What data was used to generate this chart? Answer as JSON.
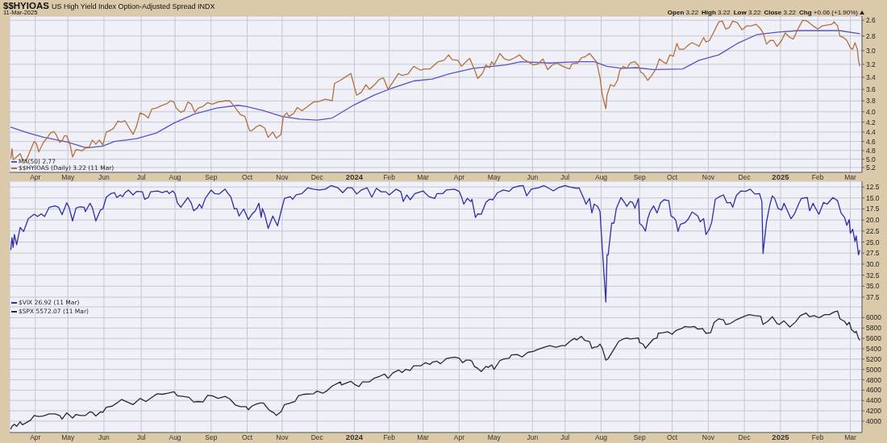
{
  "chart_data": [
    {
      "type": "line",
      "title": "$$HYIOAS",
      "subtitle": "US High Yield Index Option-Adjusted Spread INDX",
      "annotations": [
        "11-Mar-2025",
        "Open 3.22",
        "High 3.22",
        "Low 3.22",
        "Close 3.22",
        "Chg +0.06 (+1.90%)"
      ],
      "series": [
        {
          "name": "MA(50) 2.77",
          "color": "#5555c8",
          "x": [
            "2023-03-13",
            "2023-03-28",
            "2023-04-10",
            "2023-04-30",
            "2023-05-17",
            "2023-05-31",
            "2023-06-10",
            "2023-06-29",
            "2023-07-16",
            "2023-07-31",
            "2023-08-18",
            "2023-09-06",
            "2023-09-24",
            "2023-10-01",
            "2023-10-16",
            "2023-11-01",
            "2023-11-16",
            "2023-12-01",
            "2023-12-14",
            "2024-01-02",
            "2024-01-19",
            "2024-02-02",
            "2024-02-22",
            "2024-03-09",
            "2024-03-23",
            "2024-04-13",
            "2024-05-11",
            "2024-05-24",
            "2024-06-18",
            "2024-07-12",
            "2024-07-26",
            "2024-08-06",
            "2024-08-19",
            "2024-08-31",
            "2024-09-15",
            "2024-10-10",
            "2024-10-24",
            "2024-11-10",
            "2024-11-26",
            "2024-12-13",
            "2024-12-31",
            "2025-01-17",
            "2025-02-03",
            "2025-02-22",
            "2025-03-11"
          ],
          "values": [
            4.3,
            4.42,
            4.51,
            4.61,
            4.74,
            4.7,
            4.6,
            4.54,
            4.42,
            4.22,
            4.04,
            3.93,
            3.88,
            3.9,
            3.98,
            4.09,
            4.14,
            4.16,
            4.12,
            3.87,
            3.7,
            3.59,
            3.46,
            3.43,
            3.35,
            3.26,
            3.21,
            3.16,
            3.18,
            3.16,
            3.16,
            3.23,
            3.26,
            3.25,
            3.28,
            3.27,
            3.14,
            3.06,
            2.9,
            2.78,
            2.75,
            2.73,
            2.73,
            2.73,
            2.77
          ]
        },
        {
          "name": "$$HYIOAS (Daily) 3.22 (11 Mar)",
          "color": "#b4703a",
          "x": [
            "2023-03-13",
            "2023-03-14",
            "2023-03-15",
            "2023-03-17",
            "2023-03-21",
            "2023-03-23",
            "2023-03-26",
            "2023-03-28",
            "2023-04-02",
            "2023-04-04",
            "2023-04-06",
            "2023-04-10",
            "2023-04-13",
            "2023-04-16",
            "2023-04-19",
            "2023-04-21",
            "2023-04-24",
            "2023-04-26",
            "2023-04-28",
            "2023-04-30",
            "2023-05-03",
            "2023-05-05",
            "2023-05-08",
            "2023-05-11",
            "2023-05-13",
            "2023-05-17",
            "2023-05-19",
            "2023-05-22",
            "2023-05-25",
            "2023-05-28",
            "2023-05-31",
            "2023-06-03",
            "2023-06-06",
            "2023-06-09",
            "2023-06-13",
            "2023-06-16",
            "2023-06-19",
            "2023-06-22",
            "2023-06-26",
            "2023-06-29",
            "2023-07-02",
            "2023-07-06",
            "2023-07-09",
            "2023-07-12",
            "2023-07-16",
            "2023-07-20",
            "2023-07-25",
            "2023-07-28",
            "2023-07-31",
            "2023-08-02",
            "2023-08-06",
            "2023-08-09",
            "2023-08-12",
            "2023-08-15",
            "2023-08-18",
            "2023-08-21",
            "2023-08-25",
            "2023-08-29",
            "2023-09-02",
            "2023-09-07",
            "2023-09-13",
            "2023-09-17",
            "2023-09-19",
            "2023-09-22",
            "2023-09-26",
            "2023-09-30",
            "2023-10-04",
            "2023-10-06",
            "2023-10-10",
            "2023-10-13",
            "2023-10-17",
            "2023-10-20",
            "2023-10-24",
            "2023-10-27",
            "2023-10-31",
            "2023-11-02",
            "2023-11-05",
            "2023-11-07",
            "2023-11-11",
            "2023-11-14",
            "2023-11-18",
            "2023-11-23",
            "2023-11-28",
            "2023-12-03",
            "2023-12-08",
            "2023-12-14",
            "2023-12-16",
            "2023-12-21",
            "2023-12-25",
            "2023-12-30",
            "2024-01-04",
            "2024-01-08",
            "2024-01-12",
            "2024-01-15",
            "2024-01-20",
            "2024-01-23",
            "2024-01-27",
            "2024-01-31",
            "2024-02-04",
            "2024-02-09",
            "2024-02-12",
            "2024-02-17",
            "2024-02-22",
            "2024-02-28",
            "2024-03-02",
            "2024-03-07",
            "2024-03-14",
            "2024-03-19",
            "2024-03-23",
            "2024-03-26",
            "2024-03-31",
            "2024-04-03",
            "2024-04-07",
            "2024-04-10",
            "2024-04-14",
            "2024-04-17",
            "2024-04-21",
            "2024-04-24",
            "2024-04-27",
            "2024-04-29",
            "2024-05-01",
            "2024-05-06",
            "2024-05-10",
            "2024-05-14",
            "2024-05-19",
            "2024-05-23",
            "2024-05-26",
            "2024-05-30",
            "2024-06-04",
            "2024-06-08",
            "2024-06-12",
            "2024-06-16",
            "2024-06-20",
            "2024-06-24",
            "2024-06-29",
            "2024-07-05",
            "2024-07-07",
            "2024-07-12",
            "2024-07-15",
            "2024-07-18",
            "2024-07-22",
            "2024-07-25",
            "2024-07-28",
            "2024-07-31",
            "2024-08-02",
            "2024-08-05",
            "2024-08-06",
            "2024-08-09",
            "2024-08-12",
            "2024-08-15",
            "2024-08-17",
            "2024-08-20",
            "2024-08-23",
            "2024-08-26",
            "2024-08-30",
            "2024-09-02",
            "2024-09-04",
            "2024-09-06",
            "2024-09-10",
            "2024-09-13",
            "2024-09-17",
            "2024-09-20",
            "2024-09-23",
            "2024-09-26",
            "2024-09-29",
            "2024-10-02",
            "2024-10-05",
            "2024-10-07",
            "2024-10-11",
            "2024-10-15",
            "2024-10-18",
            "2024-10-22",
            "2024-10-24",
            "2024-10-28",
            "2024-10-30",
            "2024-11-02",
            "2024-11-06",
            "2024-11-10",
            "2024-11-13",
            "2024-11-16",
            "2024-11-19",
            "2024-11-22",
            "2024-11-26",
            "2024-11-30",
            "2024-12-04",
            "2024-12-08",
            "2024-12-12",
            "2024-12-16",
            "2024-12-18",
            "2024-12-21",
            "2024-12-24",
            "2024-12-27",
            "2024-12-30",
            "2025-01-03",
            "2025-01-06",
            "2025-01-10",
            "2025-01-13",
            "2025-01-17",
            "2025-01-21",
            "2025-01-25",
            "2025-01-30",
            "2025-02-03",
            "2025-02-07",
            "2025-02-11",
            "2025-02-15",
            "2025-02-17",
            "2025-02-20",
            "2025-02-22",
            "2025-02-25",
            "2025-02-28",
            "2025-03-03",
            "2025-03-05",
            "2025-03-07",
            "2025-03-09",
            "2025-03-10",
            "2025-03-11"
          ],
          "values": [
            4.97,
            4.76,
            5.01,
            4.97,
            4.87,
            5.01,
            5.04,
            4.91,
            4.6,
            4.65,
            4.83,
            4.62,
            4.53,
            4.42,
            4.39,
            4.46,
            4.62,
            4.59,
            4.48,
            4.48,
            4.68,
            4.95,
            4.78,
            4.79,
            4.81,
            4.72,
            4.74,
            4.57,
            4.66,
            4.57,
            4.68,
            4.4,
            4.37,
            4.33,
            4.18,
            4.2,
            4.17,
            4.29,
            4.45,
            4.28,
            4.02,
            4.06,
            4.12,
            3.95,
            3.93,
            3.89,
            3.85,
            3.8,
            3.82,
            3.93,
            4.01,
            3.98,
            3.82,
            3.86,
            4.01,
            3.93,
            3.9,
            3.83,
            3.86,
            3.82,
            3.8,
            3.8,
            3.85,
            3.93,
            4.05,
            4.09,
            4.37,
            4.37,
            4.29,
            4.26,
            4.32,
            4.51,
            4.4,
            4.53,
            4.45,
            4.09,
            4.02,
            4.09,
            4.03,
            3.92,
            3.98,
            3.9,
            3.82,
            3.81,
            3.77,
            3.8,
            3.5,
            3.45,
            3.4,
            3.34,
            3.7,
            3.65,
            3.52,
            3.6,
            3.51,
            3.44,
            3.41,
            3.6,
            3.48,
            3.34,
            3.37,
            3.35,
            3.23,
            3.29,
            3.27,
            3.27,
            3.16,
            3.14,
            3.06,
            3.13,
            3.14,
            3.23,
            3.16,
            3.11,
            3.27,
            3.42,
            3.34,
            3.21,
            3.25,
            3.16,
            3.21,
            3.04,
            3.12,
            3.14,
            3.1,
            3.06,
            3.12,
            3.16,
            3.21,
            3.19,
            3.12,
            3.28,
            3.21,
            3.18,
            3.23,
            3.27,
            3.19,
            3.18,
            3.1,
            3.09,
            3.04,
            3.1,
            3.16,
            3.41,
            3.7,
            3.94,
            3.7,
            3.52,
            3.55,
            3.45,
            3.29,
            3.23,
            3.26,
            3.18,
            3.16,
            3.22,
            3.32,
            3.34,
            3.45,
            3.38,
            3.27,
            3.12,
            3.16,
            3.19,
            3.06,
            3.08,
            2.9,
            2.98,
            2.98,
            2.92,
            2.89,
            2.92,
            2.94,
            2.82,
            2.88,
            2.86,
            2.74,
            2.62,
            2.61,
            2.71,
            2.69,
            2.61,
            2.63,
            2.72,
            2.67,
            2.67,
            2.65,
            2.71,
            2.76,
            2.91,
            2.86,
            2.86,
            2.94,
            2.86,
            2.76,
            2.82,
            2.84,
            2.71,
            2.6,
            2.61,
            2.67,
            2.71,
            2.67,
            2.66,
            2.65,
            2.62,
            2.67,
            2.8,
            2.82,
            2.86,
            2.96,
            2.98,
            2.89,
            2.98,
            3.14,
            3.22
          ]
        }
      ],
      "xlim": [
        "2023-03-12",
        "2025-03-13"
      ],
      "xticks": [
        {
          "value": "2023-04-03",
          "label": "Apr"
        },
        {
          "value": "2023-05-01",
          "label": "May"
        },
        {
          "value": "2023-06-01",
          "label": "Jun"
        },
        {
          "value": "2023-07-03",
          "label": "Jul"
        },
        {
          "value": "2023-08-01",
          "label": "Aug"
        },
        {
          "value": "2023-09-01",
          "label": "Sep"
        },
        {
          "value": "2023-10-02",
          "label": "Oct"
        },
        {
          "value": "2023-11-01",
          "label": "Nov"
        },
        {
          "value": "2023-12-01",
          "label": "Dec"
        },
        {
          "value": "2024-01-02",
          "label": "2024"
        },
        {
          "value": "2024-02-01",
          "label": "Feb"
        },
        {
          "value": "2024-03-01",
          "label": "Mar"
        },
        {
          "value": "2024-04-01",
          "label": "Apr"
        },
        {
          "value": "2024-05-01",
          "label": "May"
        },
        {
          "value": "2024-06-03",
          "label": "Jun"
        },
        {
          "value": "2024-07-01",
          "label": "Jul"
        },
        {
          "value": "2024-08-01",
          "label": "Aug"
        },
        {
          "value": "2024-09-03",
          "label": "Sep"
        },
        {
          "value": "2024-10-01",
          "label": "Oct"
        },
        {
          "value": "2024-11-01",
          "label": "Nov"
        },
        {
          "value": "2024-12-02",
          "label": "Dec"
        },
        {
          "value": "2025-01-02",
          "label": "2025"
        },
        {
          "value": "2025-02-03",
          "label": "Feb"
        },
        {
          "value": "2025-03-03",
          "label": "Mar"
        }
      ],
      "ylim": [
        5.32,
        2.55
      ],
      "yticks": [
        2.6,
        2.8,
        {
          "value": 3,
          "label": "3.0"
        },
        3.2,
        3.4,
        3.6,
        3.8,
        {
          "value": 4,
          "label": "4.0"
        },
        4.2,
        4.4,
        4.6,
        4.8,
        {
          "value": 5,
          "label": "5.0"
        },
        5.2
      ],
      "log": true,
      "grid": true,
      "legend": "bottom left"
    },
    {
      "type": "line",
      "series": [
        {
          "name": "$VIX 26.92 (11 Mar)",
          "color": "#2e2eaa",
          "x": [
            "2023-03-13",
            "2023-03-14",
            "2023-03-15",
            "2023-03-16",
            "2023-03-18",
            "2023-03-21",
            "2023-03-24",
            "2023-03-28",
            "2023-04-02",
            "2023-04-05",
            "2023-04-08",
            "2023-04-11",
            "2023-04-15",
            "2023-04-20",
            "2023-04-23",
            "2023-04-26",
            "2023-04-30",
            "2023-05-02",
            "2023-05-05",
            "2023-05-08",
            "2023-05-11",
            "2023-05-15",
            "2023-05-16",
            "2023-05-20",
            "2023-05-22",
            "2023-05-25",
            "2023-05-29",
            "2023-05-31",
            "2023-06-03",
            "2023-06-07",
            "2023-06-10",
            "2023-06-12",
            "2023-06-15",
            "2023-06-17",
            "2023-06-19",
            "2023-06-22",
            "2023-06-26",
            "2023-06-29",
            "2023-07-04",
            "2023-07-06",
            "2023-07-09",
            "2023-07-11",
            "2023-07-17",
            "2023-07-21",
            "2023-07-25",
            "2023-07-27",
            "2023-07-30",
            "2023-08-01",
            "2023-08-03",
            "2023-08-06",
            "2023-08-09",
            "2023-08-12",
            "2023-08-15",
            "2023-08-17",
            "2023-08-20",
            "2023-08-22",
            "2023-08-24",
            "2023-08-27",
            "2023-09-01",
            "2023-09-04",
            "2023-09-08",
            "2023-09-13",
            "2023-09-15",
            "2023-09-18",
            "2023-09-21",
            "2023-09-23",
            "2023-09-25",
            "2023-09-29",
            "2023-10-03",
            "2023-10-06",
            "2023-10-09",
            "2023-10-12",
            "2023-10-14",
            "2023-10-15",
            "2023-10-17",
            "2023-10-20",
            "2023-10-24",
            "2023-10-28",
            "2023-10-31",
            "2023-11-03",
            "2023-11-08",
            "2023-11-10",
            "2023-11-13",
            "2023-11-18",
            "2023-11-23",
            "2023-11-28",
            "2023-12-03",
            "2023-12-08",
            "2023-12-13",
            "2023-12-19",
            "2023-12-23",
            "2023-12-27",
            "2023-12-31",
            "2024-01-04",
            "2024-01-08",
            "2024-01-13",
            "2024-01-17",
            "2024-01-21",
            "2024-01-25",
            "2024-01-29",
            "2024-02-01",
            "2024-02-07",
            "2024-02-11",
            "2024-02-13",
            "2024-02-16",
            "2024-02-19",
            "2024-02-23",
            "2024-03-01",
            "2024-03-06",
            "2024-03-11",
            "2024-03-13",
            "2024-03-18",
            "2024-03-21",
            "2024-03-28",
            "2024-04-01",
            "2024-04-03",
            "2024-04-05",
            "2024-04-08",
            "2024-04-11",
            "2024-04-12",
            "2024-04-15",
            "2024-04-17",
            "2024-04-20",
            "2024-04-24",
            "2024-04-27",
            "2024-04-30",
            "2024-05-04",
            "2024-05-09",
            "2024-05-14",
            "2024-05-17",
            "2024-05-22",
            "2024-05-26",
            "2024-05-29",
            "2024-06-02",
            "2024-06-08",
            "2024-06-13",
            "2024-06-17",
            "2024-06-21",
            "2024-06-25",
            "2024-07-01",
            "2024-07-05",
            "2024-07-11",
            "2024-07-13",
            "2024-07-17",
            "2024-07-19",
            "2024-07-22",
            "2024-07-24",
            "2024-07-26",
            "2024-07-29",
            "2024-07-31",
            "2024-08-02",
            "2024-08-05",
            "2024-08-06",
            "2024-08-07",
            "2024-08-10",
            "2024-08-12",
            "2024-08-14",
            "2024-08-18",
            "2024-08-21",
            "2024-08-23",
            "2024-08-26",
            "2024-08-28",
            "2024-08-30",
            "2024-09-02",
            "2024-09-03",
            "2024-09-05",
            "2024-09-08",
            "2024-09-10",
            "2024-09-12",
            "2024-09-15",
            "2024-09-18",
            "2024-09-21",
            "2024-09-24",
            "2024-09-28",
            "2024-09-30",
            "2024-10-02",
            "2024-10-04",
            "2024-10-06",
            "2024-10-08",
            "2024-10-12",
            "2024-10-15",
            "2024-10-18",
            "2024-10-21",
            "2024-10-23",
            "2024-10-25",
            "2024-10-28",
            "2024-10-30",
            "2024-11-02",
            "2024-11-04",
            "2024-11-07",
            "2024-11-10",
            "2024-11-14",
            "2024-11-17",
            "2024-11-20",
            "2024-11-22",
            "2024-11-25",
            "2024-11-29",
            "2024-12-03",
            "2024-12-07",
            "2024-12-11",
            "2024-12-15",
            "2024-12-17",
            "2024-12-18",
            "2024-12-21",
            "2024-12-24",
            "2024-12-26",
            "2024-12-28",
            "2024-12-31",
            "2025-01-03",
            "2025-01-05",
            "2025-01-08",
            "2025-01-11",
            "2025-01-14",
            "2025-01-18",
            "2025-01-20",
            "2025-01-25",
            "2025-01-27",
            "2025-01-30",
            "2025-01-31",
            "2025-02-04",
            "2025-02-08",
            "2025-02-11",
            "2025-02-16",
            "2025-02-20",
            "2025-02-23",
            "2025-02-26",
            "2025-02-28",
            "2025-03-02",
            "2025-03-03",
            "2025-03-05",
            "2025-03-07",
            "2025-03-08",
            "2025-03-10",
            "2025-03-11"
          ],
          "values": [
            26.7,
            24.0,
            26.2,
            23.3,
            25.6,
            21.7,
            22.6,
            19.7,
            18.7,
            19.2,
            18.6,
            19.2,
            17.1,
            16.8,
            17.1,
            18.8,
            16.1,
            17.1,
            20.2,
            17.3,
            17.0,
            17.1,
            18.1,
            16.2,
            17.2,
            20.2,
            17.7,
            17.5,
            14.8,
            14.0,
            13.8,
            14.9,
            14.3,
            14.7,
            13.8,
            13.2,
            14.3,
            13.5,
            13.6,
            15.3,
            14.9,
            13.6,
            13.4,
            13.8,
            13.4,
            14.0,
            13.4,
            14.0,
            16.1,
            17.1,
            16.0,
            14.9,
            16.2,
            17.9,
            17.3,
            16.4,
            17.3,
            15.1,
            13.2,
            14.0,
            14.1,
            13.0,
            13.8,
            14.8,
            17.5,
            17.4,
            19.1,
            17.5,
            19.9,
            18.7,
            17.9,
            16.2,
            19.4,
            17.4,
            18.7,
            21.9,
            19.1,
            21.3,
            18.1,
            15.1,
            14.7,
            15.3,
            14.3,
            14.0,
            12.7,
            13.0,
            13.2,
            13.0,
            12.2,
            12.7,
            13.8,
            12.7,
            12.7,
            14.1,
            13.2,
            12.7,
            14.8,
            12.8,
            13.6,
            13.6,
            14.3,
            13.0,
            13.6,
            15.8,
            14.3,
            15.4,
            14.0,
            13.4,
            14.7,
            15.1,
            14.0,
            14.0,
            13.2,
            13.0,
            13.5,
            14.7,
            16.4,
            15.1,
            15.8,
            15.3,
            19.4,
            18.6,
            18.7,
            16.0,
            15.3,
            15.4,
            13.8,
            13.2,
            13.5,
            12.7,
            12.3,
            12.2,
            14.5,
            13.0,
            12.7,
            12.2,
            12.8,
            13.4,
            12.7,
            12.2,
            12.5,
            12.8,
            12.7,
            15.1,
            16.4,
            15.1,
            18.4,
            16.4,
            16.9,
            18.1,
            26.6,
            38.6,
            27.9,
            27.9,
            20.7,
            20.7,
            17.4,
            14.9,
            16.0,
            16.9,
            15.8,
            16.0,
            17.3,
            15.1,
            20.8,
            21.2,
            22.5,
            19.7,
            18.1,
            16.8,
            18.4,
            16.1,
            15.4,
            15.6,
            19.1,
            19.4,
            20.0,
            22.6,
            21.0,
            20.6,
            19.7,
            18.2,
            18.7,
            19.1,
            20.4,
            19.7,
            23.3,
            22.0,
            20.4,
            15.3,
            14.8,
            14.3,
            16.1,
            16.0,
            17.1,
            14.5,
            13.4,
            13.5,
            13.0,
            14.1,
            14.0,
            15.8,
            27.6,
            20.4,
            16.4,
            14.5,
            15.1,
            17.4,
            17.7,
            16.2,
            17.9,
            19.7,
            18.6,
            16.1,
            15.1,
            14.9,
            17.9,
            16.2,
            16.8,
            18.7,
            16.0,
            16.4,
            14.9,
            15.6,
            18.4,
            19.4,
            21.2,
            19.9,
            23.0,
            22.1,
            24.9,
            23.6,
            27.9,
            26.9
          ]
        }
      ],
      "xlim": [
        "2023-03-12",
        "2025-03-13"
      ],
      "xticks": [
        {
          "value": "2023-04-03",
          "label": null
        },
        {
          "value": "2023-05-01",
          "label": null
        },
        {
          "value": "2023-06-01",
          "label": null
        },
        {
          "value": "2023-07-03",
          "label": null
        },
        {
          "value": "2023-08-01",
          "label": null
        },
        {
          "value": "2023-09-01",
          "label": null
        },
        {
          "value": "2023-10-02",
          "label": null
        },
        {
          "value": "2023-11-01",
          "label": null
        },
        {
          "value": "2023-12-01",
          "label": null
        },
        {
          "value": "2024-01-02",
          "label": null
        },
        {
          "value": "2024-02-01",
          "label": null
        },
        {
          "value": "2024-03-01",
          "label": null
        },
        {
          "value": "2024-04-01",
          "label": null
        },
        {
          "value": "2024-05-01",
          "label": null
        },
        {
          "value": "2024-06-03",
          "label": null
        },
        {
          "value": "2024-07-01",
          "label": null
        },
        {
          "value": "2024-08-01",
          "label": null
        },
        {
          "value": "2024-09-03",
          "label": null
        },
        {
          "value": "2024-10-01",
          "label": null
        },
        {
          "value": "2024-11-01",
          "label": null
        },
        {
          "value": "2024-12-02",
          "label": null
        },
        {
          "value": "2025-01-02",
          "label": null
        },
        {
          "value": "2025-02-03",
          "label": null
        },
        {
          "value": "2025-03-03",
          "label": null
        }
      ],
      "ylim": [
        39.7,
        11.2
      ],
      "yticks": [
        12.5,
        {
          "value": 15,
          "label": "15.0"
        },
        17.5,
        {
          "value": 20,
          "label": "20.0"
        },
        22.5,
        {
          "value": 25,
          "label": "25.0"
        },
        27.5,
        {
          "value": 30,
          "label": "30.0"
        },
        32.5,
        {
          "value": 35,
          "label": "35.0"
        },
        37.5
      ],
      "grid": true,
      "legend": "bottom left",
      "tick_labels": "y"
    },
    {
      "type": "line",
      "series": [
        {
          "name": "$SPX 5572.07 (11 Mar)",
          "color": "#2b2b2b",
          "x": [
            "2023-03-13",
            "2023-03-14",
            "2023-03-16",
            "2023-03-18",
            "2023-03-21",
            "2023-03-23",
            "2023-03-27",
            "2023-03-30",
            "2023-04-02",
            "2023-04-06",
            "2023-04-10",
            "2023-04-15",
            "2023-04-20",
            "2023-04-24",
            "2023-04-26",
            "2023-04-30",
            "2023-05-05",
            "2023-05-08",
            "2023-05-12",
            "2023-05-16",
            "2023-05-20",
            "2023-05-22",
            "2023-05-25",
            "2023-05-29",
            "2023-05-31",
            "2023-06-03",
            "2023-06-08",
            "2023-06-12",
            "2023-06-16",
            "2023-06-21",
            "2023-06-26",
            "2023-06-29",
            "2023-07-02",
            "2023-07-07",
            "2023-07-14",
            "2023-07-17",
            "2023-07-21",
            "2023-07-26",
            "2023-07-31",
            "2023-08-03",
            "2023-08-08",
            "2023-08-13",
            "2023-08-17",
            "2023-08-21",
            "2023-08-25",
            "2023-08-29",
            "2023-09-02",
            "2023-09-07",
            "2023-09-13",
            "2023-09-17",
            "2023-09-22",
            "2023-09-26",
            "2023-10-01",
            "2023-10-03",
            "2023-10-06",
            "2023-10-10",
            "2023-10-13",
            "2023-10-16",
            "2023-10-18",
            "2023-10-21",
            "2023-10-25",
            "2023-10-27",
            "2023-10-31",
            "2023-11-03",
            "2023-11-08",
            "2023-11-12",
            "2023-11-15",
            "2023-11-20",
            "2023-11-28",
            "2023-12-01",
            "2023-12-06",
            "2023-12-09",
            "2023-12-14",
            "2023-12-21",
            "2023-12-22",
            "2023-12-30",
            "2024-01-03",
            "2024-01-06",
            "2024-01-09",
            "2024-01-15",
            "2024-01-19",
            "2024-01-24",
            "2024-01-28",
            "2024-01-31",
            "2024-02-04",
            "2024-02-09",
            "2024-02-12",
            "2024-02-15",
            "2024-02-19",
            "2024-02-22",
            "2024-02-28",
            "2024-03-03",
            "2024-03-07",
            "2024-03-09",
            "2024-03-13",
            "2024-03-16",
            "2024-03-21",
            "2024-03-28",
            "2024-04-01",
            "2024-04-04",
            "2024-04-07",
            "2024-04-10",
            "2024-04-12",
            "2024-04-14",
            "2024-04-17",
            "2024-04-20",
            "2024-04-24",
            "2024-04-26",
            "2024-04-29",
            "2024-05-01",
            "2024-05-06",
            "2024-05-09",
            "2024-05-14",
            "2024-05-16",
            "2024-05-21",
            "2024-05-25",
            "2024-05-30",
            "2024-06-04",
            "2024-06-08",
            "2024-06-13",
            "2024-06-18",
            "2024-06-23",
            "2024-06-28",
            "2024-07-01",
            "2024-07-05",
            "2024-07-09",
            "2024-07-11",
            "2024-07-15",
            "2024-07-18",
            "2024-07-22",
            "2024-07-24",
            "2024-07-26",
            "2024-07-29",
            "2024-07-31",
            "2024-08-02",
            "2024-08-05",
            "2024-08-07",
            "2024-08-10",
            "2024-08-13",
            "2024-08-16",
            "2024-08-20",
            "2024-08-23",
            "2024-08-26",
            "2024-08-30",
            "2024-09-02",
            "2024-09-03",
            "2024-09-06",
            "2024-09-08",
            "2024-09-11",
            "2024-09-15",
            "2024-09-18",
            "2024-09-19",
            "2024-09-23",
            "2024-09-27",
            "2024-10-01",
            "2024-10-03",
            "2024-10-05",
            "2024-10-09",
            "2024-10-12",
            "2024-10-16",
            "2024-10-20",
            "2024-10-23",
            "2024-10-27",
            "2024-10-30",
            "2024-11-03",
            "2024-11-06",
            "2024-11-10",
            "2024-11-14",
            "2024-11-16",
            "2024-11-20",
            "2024-11-25",
            "2024-12-02",
            "2024-12-06",
            "2024-12-11",
            "2024-12-16",
            "2024-12-18",
            "2024-12-22",
            "2024-12-26",
            "2024-12-30",
            "2025-01-01",
            "2025-01-05",
            "2025-01-10",
            "2025-01-15",
            "2025-01-19",
            "2025-01-24",
            "2025-01-27",
            "2025-01-31",
            "2025-02-04",
            "2025-02-09",
            "2025-02-13",
            "2025-02-17",
            "2025-02-20",
            "2025-02-22",
            "2025-02-26",
            "2025-02-28",
            "2025-03-02",
            "2025-03-04",
            "2025-03-07",
            "2025-03-08",
            "2025-03-10",
            "2025-03-11"
          ],
          "values": [
            3850,
            3900,
            3940,
            3900,
            3990,
            3930,
            3980,
            4020,
            4110,
            4090,
            4100,
            4140,
            4140,
            4110,
            4040,
            4160,
            4060,
            4130,
            4110,
            4110,
            4180,
            4170,
            4100,
            4180,
            4170,
            4270,
            4290,
            4350,
            4420,
            4370,
            4320,
            4380,
            4440,
            4380,
            4490,
            4530,
            4520,
            4540,
            4570,
            4490,
            4480,
            4460,
            4370,
            4380,
            4370,
            4500,
            4490,
            4440,
            4480,
            4430,
            4310,
            4280,
            4280,
            4220,
            4290,
            4330,
            4350,
            4350,
            4290,
            4210,
            4160,
            4110,
            4180,
            4320,
            4350,
            4380,
            4490,
            4520,
            4530,
            4580,
            4540,
            4580,
            4680,
            4760,
            4700,
            4770,
            4700,
            4670,
            4760,
            4760,
            4830,
            4870,
            4910,
            4830,
            4930,
            4990,
            4940,
            5000,
            4980,
            5070,
            5070,
            5130,
            5100,
            5140,
            5160,
            5110,
            5210,
            5240,
            5220,
            5130,
            5180,
            5180,
            5160,
            5060,
            5020,
            4960,
            5060,
            5040,
            5090,
            5000,
            5170,
            5200,
            5220,
            5280,
            5290,
            5240,
            5330,
            5350,
            5390,
            5430,
            5460,
            5430,
            5460,
            5460,
            5540,
            5600,
            5570,
            5640,
            5560,
            5540,
            5410,
            5430,
            5440,
            5490,
            5410,
            5180,
            5210,
            5320,
            5430,
            5540,
            5590,
            5610,
            5590,
            5600,
            5610,
            5520,
            5490,
            5410,
            5490,
            5590,
            5610,
            5700,
            5710,
            5730,
            5680,
            5730,
            5760,
            5790,
            5830,
            5820,
            5830,
            5780,
            5790,
            5700,
            5710,
            5910,
            5980,
            5960,
            5870,
            5890,
            5960,
            6030,
            6060,
            6040,
            6030,
            5870,
            5930,
            6020,
            5890,
            5870,
            5940,
            5820,
            5920,
            6040,
            6090,
            6020,
            6040,
            6000,
            6060,
            6060,
            6110,
            6130,
            5980,
            5930,
            5860,
            5910,
            5770,
            5710,
            5740,
            5600,
            5570
          ]
        }
      ],
      "xlim": [
        "2023-03-12",
        "2025-03-13"
      ],
      "xticks": [
        {
          "value": "2023-04-03",
          "label": "Apr"
        },
        {
          "value": "2023-05-01",
          "label": "May"
        },
        {
          "value": "2023-06-01",
          "label": "Jun"
        },
        {
          "value": "2023-07-03",
          "label": "Jul"
        },
        {
          "value": "2023-08-01",
          "label": "Aug"
        },
        {
          "value": "2023-09-01",
          "label": "Sep"
        },
        {
          "value": "2023-10-02",
          "label": "Oct"
        },
        {
          "value": "2023-11-01",
          "label": "Nov"
        },
        {
          "value": "2023-12-01",
          "label": "Dec"
        },
        {
          "value": "2024-01-02",
          "label": "2024"
        },
        {
          "value": "2024-02-01",
          "label": "Feb"
        },
        {
          "value": "2024-03-01",
          "label": "Mar"
        },
        {
          "value": "2024-04-01",
          "label": "Apr"
        },
        {
          "value": "2024-05-01",
          "label": "May"
        },
        {
          "value": "2024-06-03",
          "label": "Jun"
        },
        {
          "value": "2024-07-01",
          "label": "Jul"
        },
        {
          "value": "2024-08-01",
          "label": "Aug"
        },
        {
          "value": "2024-09-03",
          "label": "Sep"
        },
        {
          "value": "2024-10-01",
          "label": "Oct"
        },
        {
          "value": "2024-11-01",
          "label": "Nov"
        },
        {
          "value": "2024-12-02",
          "label": "Dec"
        },
        {
          "value": "2025-01-02",
          "label": "2025"
        },
        {
          "value": "2025-02-03",
          "label": "Feb"
        },
        {
          "value": "2025-03-03",
          "label": "Mar"
        }
      ],
      "ylim": [
        3780,
        6210
      ],
      "yticks": [
        4000,
        4200,
        4400,
        4600,
        4800,
        5000,
        5200,
        5400,
        5600,
        5800,
        6000
      ],
      "grid": true,
      "legend": "top left"
    }
  ]
}
